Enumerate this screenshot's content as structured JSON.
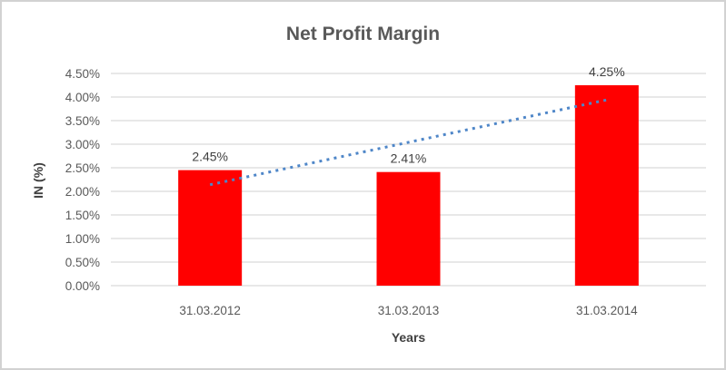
{
  "window": {
    "background_color": "#ffffff",
    "border_color": "#d2d2d2"
  },
  "chart_data": {
    "type": "bar",
    "title": "Net Profit Margin",
    "xlabel": "Years",
    "ylabel": "IN (%)",
    "categories": [
      "31.03.2012",
      "31.03.2013",
      "31.03.2014"
    ],
    "values": [
      2.45,
      2.41,
      4.25
    ],
    "data_labels": [
      "2.45%",
      "2.41%",
      "4.25%"
    ],
    "ylim": [
      0,
      4.5
    ],
    "y_tick_step": 0.5,
    "y_tick_labels": [
      "0.00%",
      "0.50%",
      "1.00%",
      "1.50%",
      "2.00%",
      "2.50%",
      "3.00%",
      "3.50%",
      "4.00%",
      "4.50%"
    ],
    "grid": true,
    "legend": "none",
    "bar_color": "#ff0000",
    "gridline_color": "#d9d9d9",
    "trendline": {
      "type": "linear",
      "style": "dotted",
      "color": "#4e86c8",
      "start_value": 2.14,
      "end_value": 3.94
    },
    "colors": {
      "title_text": "#595959",
      "tick_label_text": "#595959",
      "data_label_text": "#404040",
      "axis_title_text": "#404040"
    }
  }
}
